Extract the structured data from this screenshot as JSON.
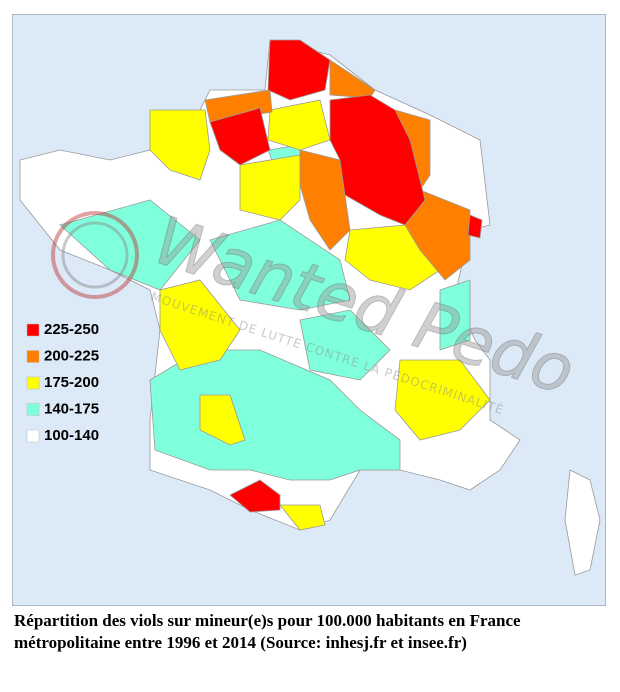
{
  "map": {
    "legend": [
      {
        "label": "225-250",
        "color": "#ff0000"
      },
      {
        "label": "200-225",
        "color": "#ff8000"
      },
      {
        "label": "175-200",
        "color": "#ffff00"
      },
      {
        "label": "140-175",
        "color": "#80ffdc"
      },
      {
        "label": "100-140",
        "color": "#ffffff"
      }
    ],
    "watermark": {
      "title": "Wanted Pedo",
      "subtitle": "MOUVEMENT DE LUTTE CONTRE LA PÉDOCRIMINALITÉ"
    }
  },
  "caption": "Répartition des viols sur mineur(e)s pour 100.000 habitants en France métropolitaine entre 1996 et 2014 (Source: inhesj.fr et insee.fr)"
}
